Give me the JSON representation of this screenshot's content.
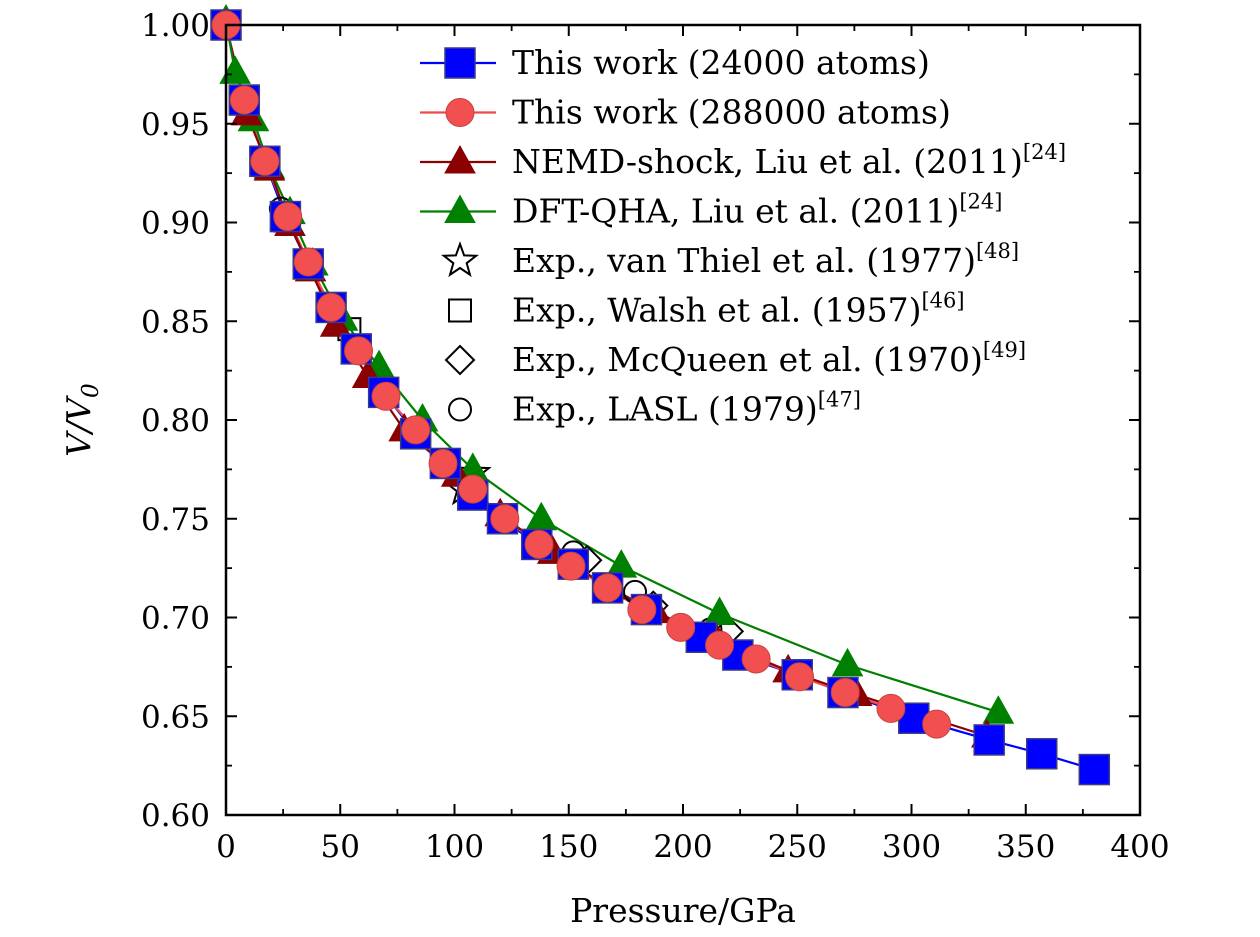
{
  "chart_data": {
    "type": "line",
    "xlabel": "Pressure/GPa",
    "ylabel_main": "V/V",
    "ylabel_sub": "0",
    "xlim": [
      0,
      400
    ],
    "ylim": [
      0.6,
      1.0
    ],
    "xticks": [
      0,
      50,
      100,
      150,
      200,
      250,
      300,
      350,
      400
    ],
    "xtick_labels": [
      "0",
      "50",
      "100",
      "150",
      "200",
      "250",
      "300",
      "350",
      "400"
    ],
    "yticks": [
      0.6,
      0.65,
      0.7,
      0.75,
      0.8,
      0.85,
      0.9,
      0.95,
      1.0
    ],
    "ytick_labels": [
      "0.60",
      "0.65",
      "0.70",
      "0.75",
      "0.80",
      "0.85",
      "0.90",
      "0.95",
      "1.00"
    ],
    "grid": false,
    "legend_position": "top-right",
    "series": [
      {
        "name": "This work (24000 atoms)",
        "ref": "",
        "marker": "square",
        "line": true,
        "color": "#0000ff",
        "marker_color": "#0000ff",
        "points": [
          [
            0,
            1.0
          ],
          [
            8,
            0.962
          ],
          [
            17,
            0.931
          ],
          [
            26,
            0.903
          ],
          [
            36,
            0.879
          ],
          [
            46,
            0.857
          ],
          [
            57,
            0.836
          ],
          [
            69,
            0.814
          ],
          [
            83,
            0.793
          ],
          [
            96,
            0.778
          ],
          [
            108,
            0.762
          ],
          [
            121,
            0.75
          ],
          [
            136,
            0.737
          ],
          [
            152,
            0.727
          ],
          [
            167,
            0.715
          ],
          [
            184,
            0.704
          ],
          [
            208,
            0.69
          ],
          [
            224,
            0.681
          ],
          [
            250,
            0.671
          ],
          [
            270,
            0.662
          ],
          [
            301,
            0.649
          ],
          [
            334,
            0.638
          ],
          [
            357,
            0.631
          ],
          [
            380,
            0.623
          ]
        ]
      },
      {
        "name": "This work (288000 atoms)",
        "ref": "",
        "marker": "circle",
        "line": true,
        "color": "#ee4a4a",
        "marker_color": "#f25050",
        "points": [
          [
            0,
            1.0
          ],
          [
            8,
            0.962
          ],
          [
            17,
            0.931
          ],
          [
            27,
            0.903
          ],
          [
            36,
            0.88
          ],
          [
            46,
            0.857
          ],
          [
            58,
            0.835
          ],
          [
            70,
            0.812
          ],
          [
            83,
            0.795
          ],
          [
            95,
            0.778
          ],
          [
            108,
            0.765
          ],
          [
            122,
            0.75
          ],
          [
            137,
            0.737
          ],
          [
            151,
            0.726
          ],
          [
            167,
            0.715
          ],
          [
            182,
            0.704
          ],
          [
            199,
            0.695
          ],
          [
            216,
            0.686
          ],
          [
            232,
            0.679
          ],
          [
            251,
            0.67
          ],
          [
            271,
            0.662
          ],
          [
            291,
            0.654
          ],
          [
            311,
            0.646
          ]
        ]
      },
      {
        "name": "NEMD-shock, Liu et al. (2011)",
        "ref": "[24]",
        "marker": "triangle",
        "line": true,
        "color": "#8b0000",
        "marker_color": "#8b0000",
        "points": [
          [
            0,
            1.0
          ],
          [
            9,
            0.955
          ],
          [
            19,
            0.927
          ],
          [
            28,
            0.899
          ],
          [
            37,
            0.876
          ],
          [
            48,
            0.848
          ],
          [
            62,
            0.822
          ],
          [
            78,
            0.795
          ],
          [
            101,
            0.772
          ],
          [
            120,
            0.752
          ],
          [
            143,
            0.733
          ],
          [
            168,
            0.715
          ],
          [
            188,
            0.703
          ],
          [
            215,
            0.688
          ],
          [
            246,
            0.673
          ],
          [
            276,
            0.661
          ],
          [
            333,
            0.64
          ]
        ]
      },
      {
        "name": "DFT-QHA, Liu et al. (2011)",
        "ref": "[24]",
        "marker": "triangle",
        "line": true,
        "color": "#008000",
        "marker_color": "#008000",
        "points": [
          [
            0,
            1.002
          ],
          [
            4,
            0.976
          ],
          [
            12,
            0.952
          ],
          [
            19,
            0.928
          ],
          [
            28,
            0.905
          ],
          [
            38,
            0.879
          ],
          [
            51,
            0.851
          ],
          [
            67,
            0.827
          ],
          [
            86,
            0.8
          ],
          [
            108,
            0.775
          ],
          [
            138,
            0.75
          ],
          [
            173,
            0.726
          ],
          [
            216,
            0.702
          ],
          [
            272,
            0.676
          ],
          [
            338,
            0.652
          ]
        ]
      },
      {
        "name": "Exp., van Thiel et al. (1977)",
        "ref": "[48]",
        "marker": "star",
        "line": false,
        "color": "#000000",
        "marker_color": "none",
        "points": [
          [
            104,
            0.765
          ],
          [
            108,
            0.773
          ]
        ]
      },
      {
        "name": "Exp., Walsh et al. (1957)",
        "ref": "[46]",
        "marker": "open-square",
        "line": false,
        "color": "#000000",
        "marker_color": "none",
        "points": [
          [
            26,
            0.901
          ],
          [
            54,
            0.846
          ]
        ]
      },
      {
        "name": "Exp., McQueen et al. (1970)",
        "ref": "[49]",
        "marker": "diamond",
        "line": false,
        "color": "#000000",
        "marker_color": "none",
        "points": [
          [
            158,
            0.729
          ],
          [
            187,
            0.706
          ],
          [
            220,
            0.693
          ]
        ]
      },
      {
        "name": "Exp., LASL (1979)",
        "ref": "[47]",
        "marker": "open-circle",
        "line": false,
        "color": "#000000",
        "marker_color": "none",
        "points": [
          [
            24,
            0.907
          ],
          [
            152,
            0.733
          ],
          [
            179,
            0.713
          ],
          [
            212,
            0.694
          ]
        ]
      }
    ]
  }
}
